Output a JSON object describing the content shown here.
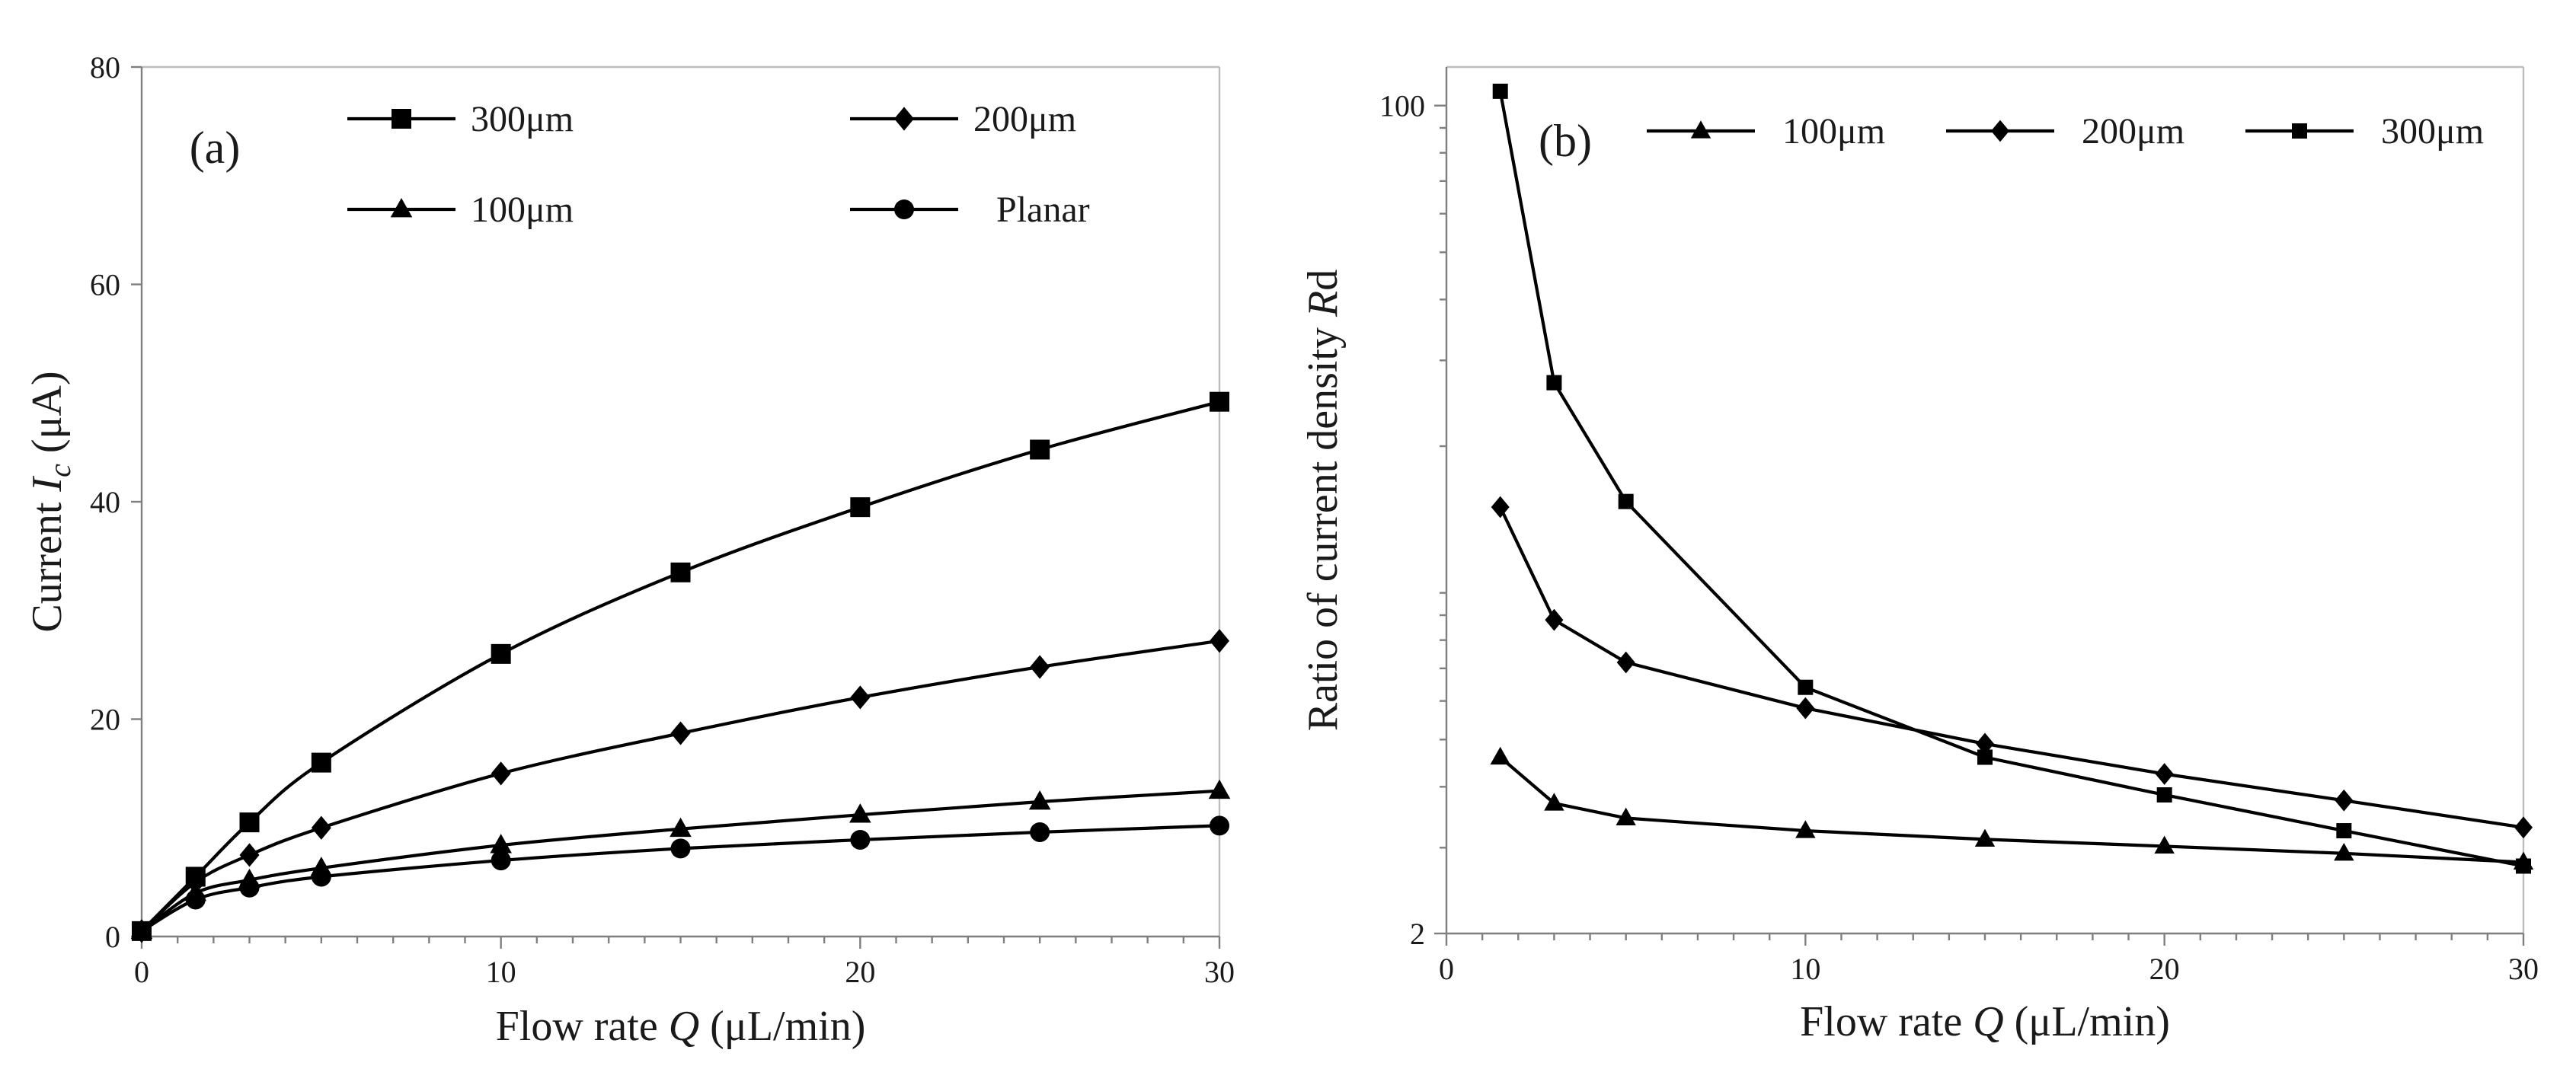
{
  "chart_data": [
    {
      "panel": "(a)",
      "type": "line",
      "xlabel_parts": [
        "Flow rate ",
        "Q",
        " (μL/min)"
      ],
      "ylabel_parts": [
        "Current  ",
        "I",
        "c",
        " (μA)"
      ],
      "xlim": [
        0,
        30
      ],
      "ylim": [
        0,
        80
      ],
      "xticks": [
        0,
        10,
        20,
        30
      ],
      "yticks": [
        0,
        20,
        40,
        60,
        80
      ],
      "x": [
        0,
        1.5,
        3,
        5,
        10,
        15,
        20,
        25,
        30
      ],
      "legend_placement": "top",
      "series": [
        {
          "name": "300μm",
          "marker": "square",
          "values": [
            0.5,
            5.5,
            10.5,
            16,
            26,
            33.5,
            39.5,
            44.8,
            49.2
          ]
        },
        {
          "name": "200μm",
          "marker": "diamond",
          "values": [
            0.5,
            5,
            7.5,
            10,
            15,
            18.7,
            22,
            24.8,
            27.2
          ]
        },
        {
          "name": "100μm",
          "marker": "triangle",
          "values": [
            0.5,
            4,
            5.2,
            6.3,
            8.4,
            9.9,
            11.2,
            12.4,
            13.4
          ]
        },
        {
          "name": "Planar",
          "marker": "circle",
          "values": [
            0.5,
            3.4,
            4.5,
            5.5,
            7,
            8.1,
            8.9,
            9.6,
            10.2
          ]
        }
      ]
    },
    {
      "panel": "(b)",
      "type": "line",
      "xlabel_parts": [
        "Flow rate ",
        "Q",
        " (μL/min)"
      ],
      "ylabel_parts": [
        "Ratio of current density ",
        "R",
        "d"
      ],
      "xlim": [
        0,
        30
      ],
      "ylim": [
        2,
        120
      ],
      "yscale": "log",
      "xticks": [
        0,
        10,
        20,
        30
      ],
      "yticks": [
        2,
        100
      ],
      "x": [
        1.5,
        3,
        5,
        10,
        15,
        20,
        25,
        30
      ],
      "legend_placement": "top",
      "series": [
        {
          "name": "100μm",
          "marker": "triangle",
          "values": [
            4.6,
            3.7,
            3.45,
            3.25,
            3.12,
            3.02,
            2.92,
            2.8
          ]
        },
        {
          "name": "200μm",
          "marker": "diamond",
          "values": [
            15,
            8.8,
            7.2,
            5.8,
            4.9,
            4.25,
            3.75,
            3.3
          ]
        },
        {
          "name": "300μm",
          "marker": "square",
          "values": [
            107,
            27,
            15.4,
            6.4,
            4.6,
            3.85,
            3.25,
            2.75
          ]
        }
      ]
    }
  ]
}
